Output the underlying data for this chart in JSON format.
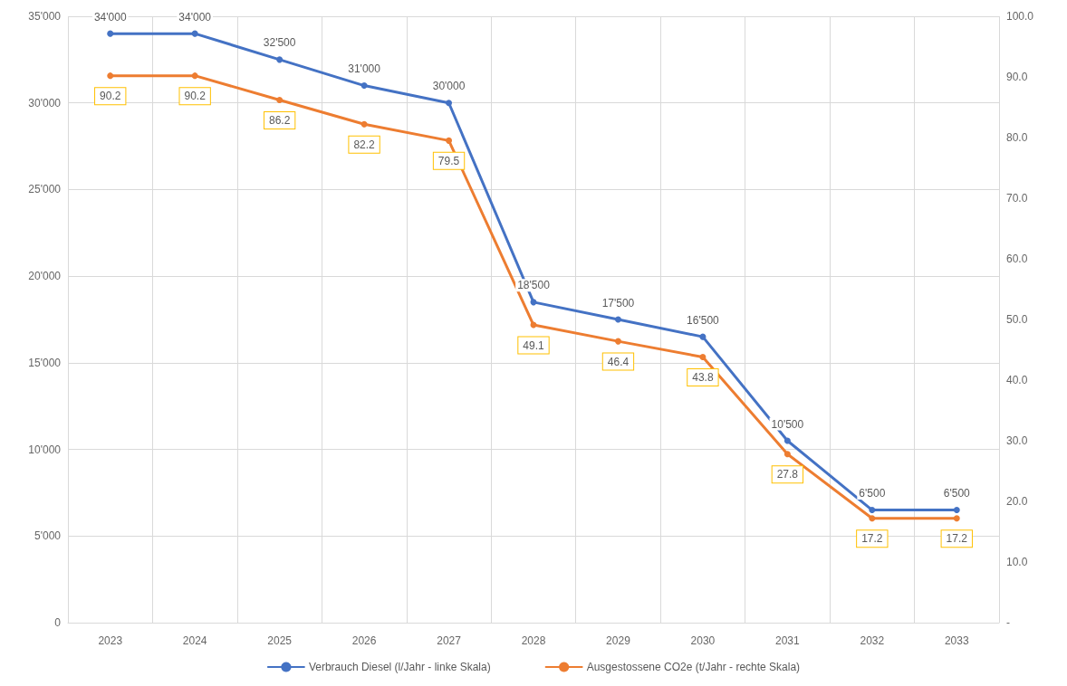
{
  "chart_data": {
    "type": "line",
    "categories": [
      "2023",
      "2024",
      "2025",
      "2026",
      "2027",
      "2028",
      "2029",
      "2030",
      "2031",
      "2032",
      "2033"
    ],
    "series": [
      {
        "name": "Verbrauch Diesel (l/Jahr - linke Skala)",
        "color": "#4472c4",
        "values": [
          34000,
          34000,
          32500,
          31000,
          30000,
          18500,
          17500,
          16500,
          10500,
          6500,
          6500
        ],
        "value_labels": [
          "34'000",
          "34'000",
          "32'500",
          "31'000",
          "30'000",
          "18'500",
          "17'500",
          "16'500",
          "10'500",
          "6'500",
          "6'500"
        ]
      },
      {
        "name": "Ausgestossene CO2e (t/Jahr - rechte Skala)",
        "color": "#ed7d31",
        "axis": "y2",
        "values": [
          90.2,
          90.2,
          86.2,
          82.2,
          79.5,
          49.1,
          46.4,
          43.8,
          27.8,
          17.2,
          17.2
        ],
        "value_labels": [
          "90.2",
          "90.2",
          "86.2",
          "82.2",
          "79.5",
          "49.1",
          "46.4",
          "43.8",
          "27.8",
          "17.2",
          "17.2"
        ]
      }
    ],
    "ylim": [
      0,
      35000
    ],
    "yticks": [
      0,
      {
        "value": 5000,
        "label": "5'000"
      },
      {
        "value": 10000,
        "label": "10'000"
      },
      {
        "value": 15000,
        "label": "15'000"
      },
      {
        "value": 20000,
        "label": "20'000"
      },
      {
        "value": 25000,
        "label": "25'000"
      },
      {
        "value": 30000,
        "label": "30'000"
      },
      {
        "value": 35000,
        "label": "35'000"
      }
    ],
    "y2lim": [
      0,
      100
    ],
    "y2ticks": [
      {
        "value": 0,
        "label": "-"
      },
      {
        "value": 10,
        "label": "10.0"
      },
      {
        "value": 20,
        "label": "20.0"
      },
      {
        "value": 30,
        "label": "30.0"
      },
      {
        "value": 40,
        "label": "40.0"
      },
      {
        "value": 50,
        "label": "50.0"
      },
      {
        "value": 60,
        "label": "60.0"
      },
      {
        "value": 70,
        "label": "70.0"
      },
      {
        "value": 80,
        "label": "80.0"
      },
      {
        "value": 90,
        "label": "90.0"
      },
      {
        "value": 100,
        "label": "100.0"
      }
    ],
    "grid": true,
    "legend": "bottom",
    "marker": "circle",
    "line_style": "solid"
  }
}
